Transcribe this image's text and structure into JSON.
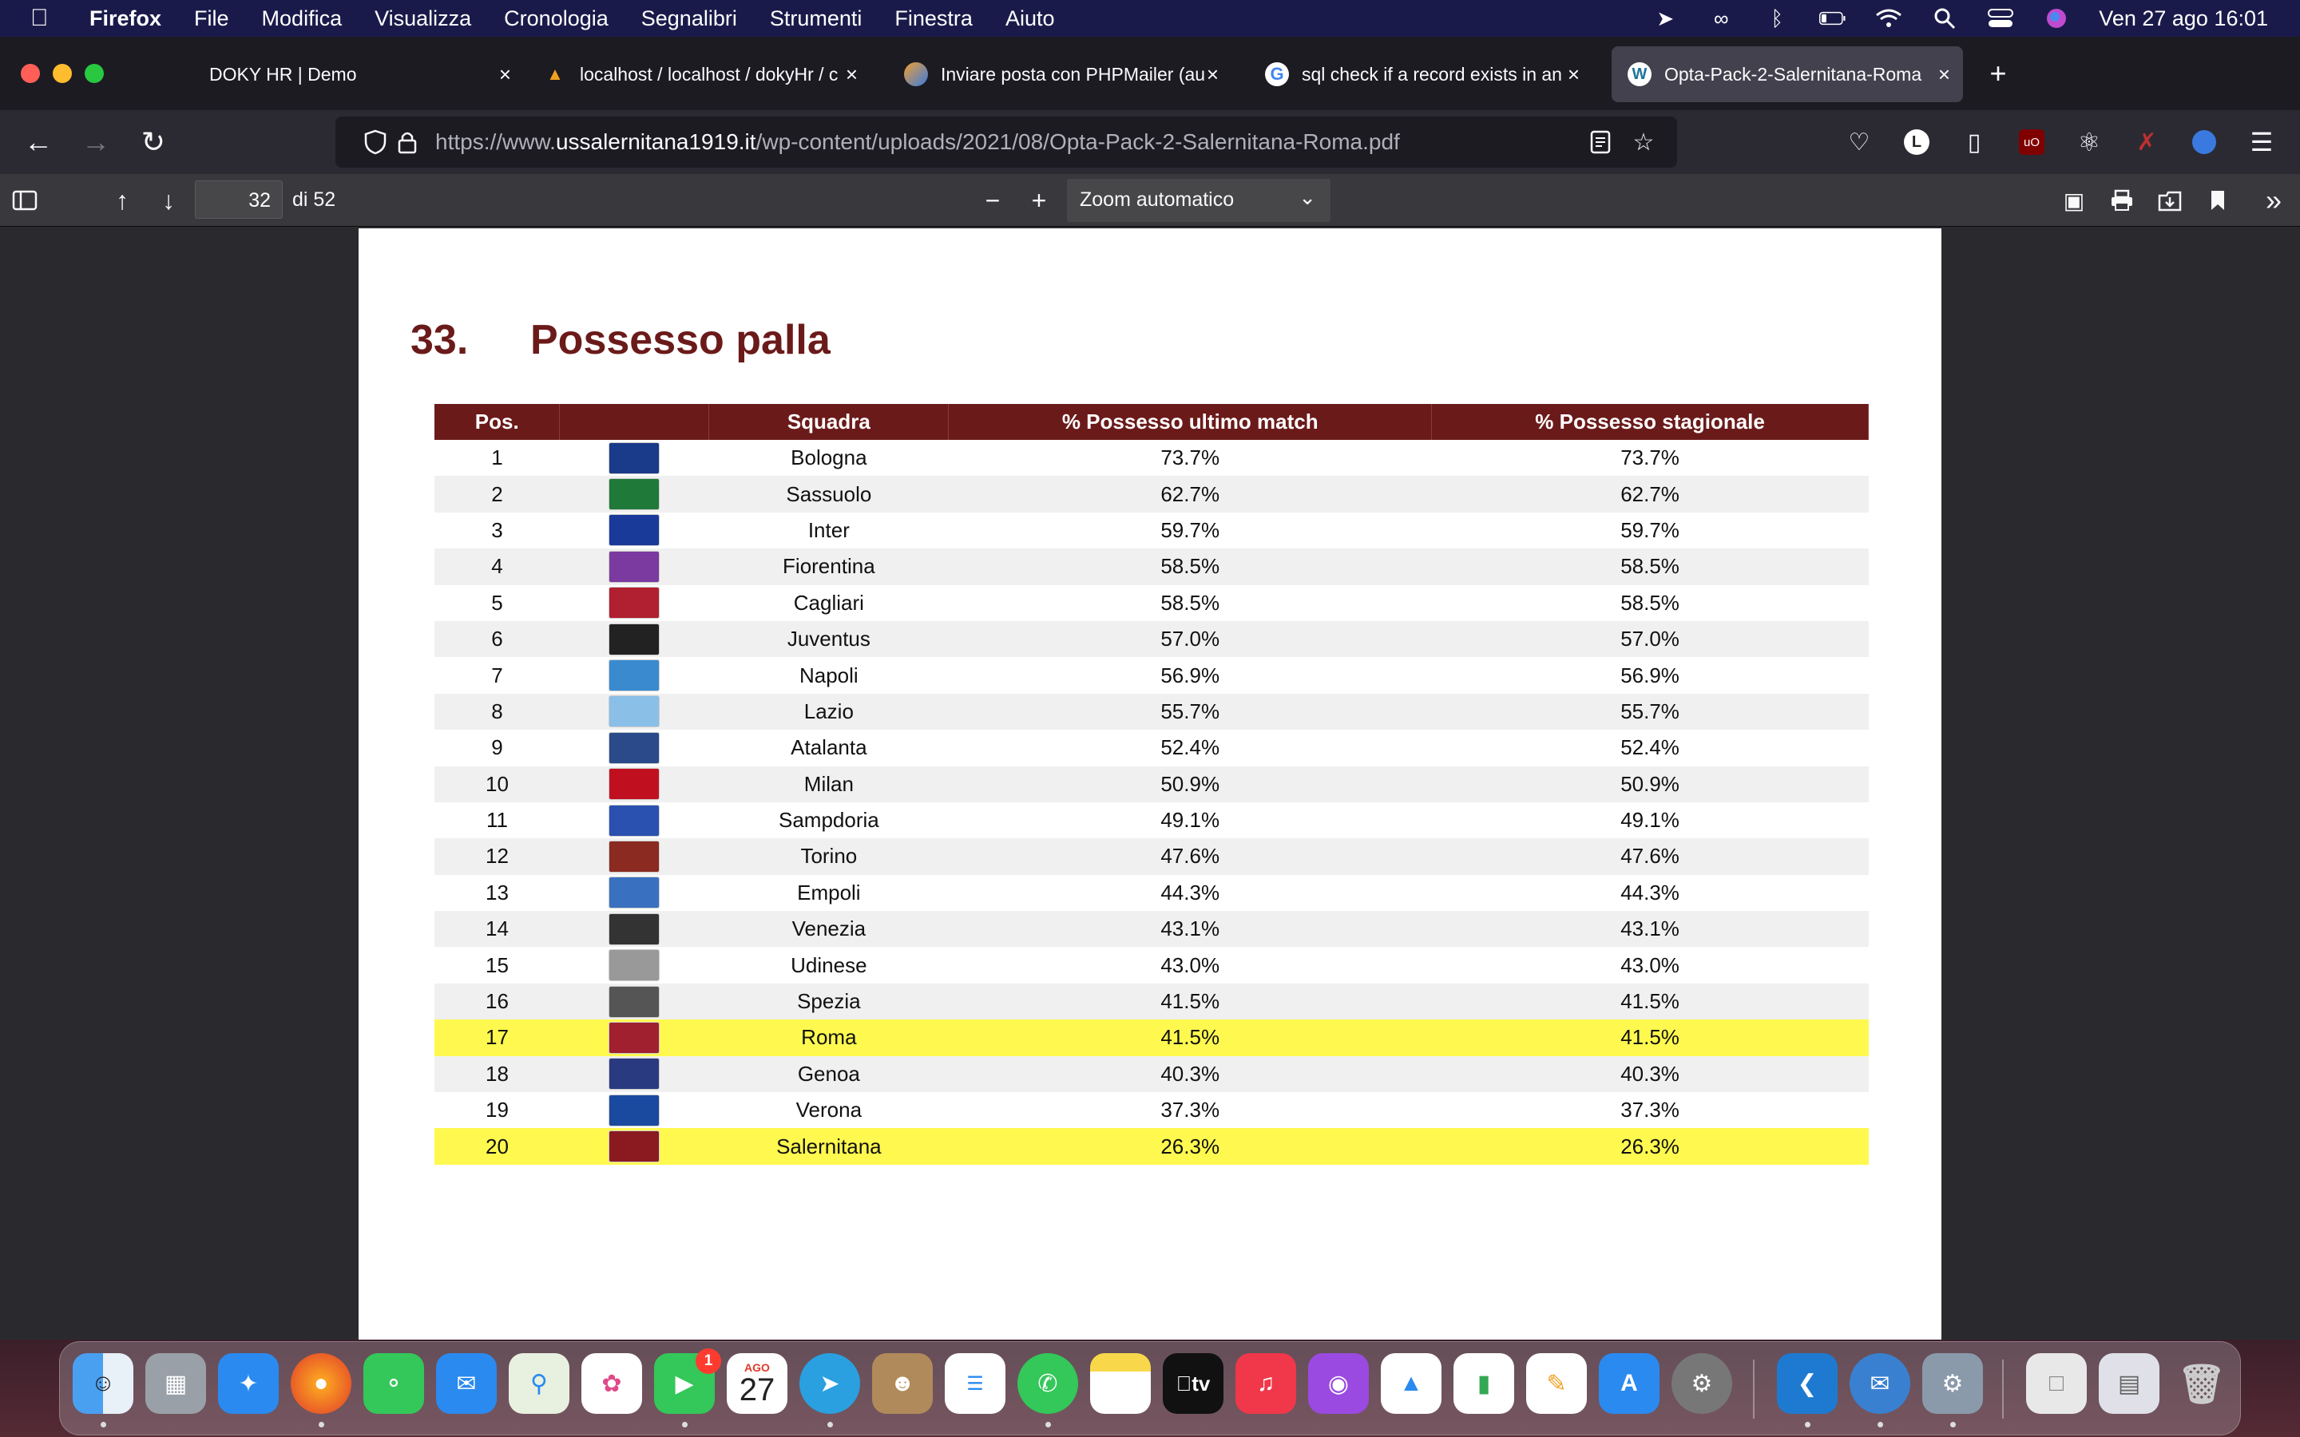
{
  "menubar": {
    "app_name": "Firefox",
    "items": [
      "File",
      "Modifica",
      "Visualizza",
      "Cronologia",
      "Segnalibri",
      "Strumenti",
      "Finestra",
      "Aiuto"
    ],
    "datetime": "Ven 27 ago  16:01"
  },
  "tabs": [
    {
      "title": "DOKY HR | Demo",
      "icon": "blank-page-icon"
    },
    {
      "title": "localhost / localhost / dokyHr / c",
      "icon": "phpmyadmin-icon"
    },
    {
      "title": "Inviare posta con PHPMailer (au",
      "icon": "site-icon"
    },
    {
      "title": "sql check if a record exists in an",
      "icon": "google-icon"
    },
    {
      "title": "Opta-Pack-2-Salernitana-Roma",
      "icon": "wordpress-icon"
    }
  ],
  "urlbar": {
    "prefix": "https://www.",
    "domain": "ussalernitana1919.it",
    "path": "/wp-content/uploads/2021/08/Opta-Pack-2-Salernitana-Roma.pdf"
  },
  "pdf_toolbar": {
    "page_number": "32",
    "page_total": "di 52",
    "zoom": "Zoom automatico"
  },
  "document": {
    "section_number": "33.",
    "section_title": "Possesso palla",
    "columns": [
      "Pos.",
      "",
      "Squadra",
      "% Possesso ultimo match",
      "% Possesso stagionale"
    ],
    "rows": [
      {
        "pos": "1",
        "team": "Bologna",
        "last": "73.7%",
        "season": "73.7%",
        "crest": "#1a3a8a"
      },
      {
        "pos": "2",
        "team": "Sassuolo",
        "last": "62.7%",
        "season": "62.7%",
        "crest": "#1f7a3a"
      },
      {
        "pos": "3",
        "team": "Inter",
        "last": "59.7%",
        "season": "59.7%",
        "crest": "#1a3a9a"
      },
      {
        "pos": "4",
        "team": "Fiorentina",
        "last": "58.5%",
        "season": "58.5%",
        "crest": "#7a3aa0"
      },
      {
        "pos": "5",
        "team": "Cagliari",
        "last": "58.5%",
        "season": "58.5%",
        "crest": "#b02030"
      },
      {
        "pos": "6",
        "team": "Juventus",
        "last": "57.0%",
        "season": "57.0%",
        "crest": "#222222"
      },
      {
        "pos": "7",
        "team": "Napoli",
        "last": "56.9%",
        "season": "56.9%",
        "crest": "#3a8ad0"
      },
      {
        "pos": "8",
        "team": "Lazio",
        "last": "55.7%",
        "season": "55.7%",
        "crest": "#8ac0e8"
      },
      {
        "pos": "9",
        "team": "Atalanta",
        "last": "52.4%",
        "season": "52.4%",
        "crest": "#2a4a8a"
      },
      {
        "pos": "10",
        "team": "Milan",
        "last": "50.9%",
        "season": "50.9%",
        "crest": "#c01020"
      },
      {
        "pos": "11",
        "team": "Sampdoria",
        "last": "49.1%",
        "season": "49.1%",
        "crest": "#2a50b0"
      },
      {
        "pos": "12",
        "team": "Torino",
        "last": "47.6%",
        "season": "47.6%",
        "crest": "#8a2a20"
      },
      {
        "pos": "13",
        "team": "Empoli",
        "last": "44.3%",
        "season": "44.3%",
        "crest": "#3a70c0"
      },
      {
        "pos": "14",
        "team": "Venezia",
        "last": "43.1%",
        "season": "43.1%",
        "crest": "#333333"
      },
      {
        "pos": "15",
        "team": "Udinese",
        "last": "43.0%",
        "season": "43.0%",
        "crest": "#999999"
      },
      {
        "pos": "16",
        "team": "Spezia",
        "last": "41.5%",
        "season": "41.5%",
        "crest": "#555555"
      },
      {
        "pos": "17",
        "team": "Roma",
        "last": "41.5%",
        "season": "41.5%",
        "crest": "#a02030",
        "highlight": true
      },
      {
        "pos": "18",
        "team": "Genoa",
        "last": "40.3%",
        "season": "40.3%",
        "crest": "#2a3a80"
      },
      {
        "pos": "19",
        "team": "Verona",
        "last": "37.3%",
        "season": "37.3%",
        "crest": "#1a4aa0"
      },
      {
        "pos": "20",
        "team": "Salernitana",
        "last": "26.3%",
        "season": "26.3%",
        "crest": "#8a1a20",
        "highlight": true
      }
    ]
  },
  "dock": {
    "calendar_month": "AGO",
    "calendar_day": "27",
    "facetime_badge": "1",
    "tv_label": "tv"
  },
  "colors": {
    "heading": "#6b1a1a",
    "table_header": "#6b1a1a",
    "highlight_row": "#fff94f",
    "menubar": "#1a1a4a"
  }
}
